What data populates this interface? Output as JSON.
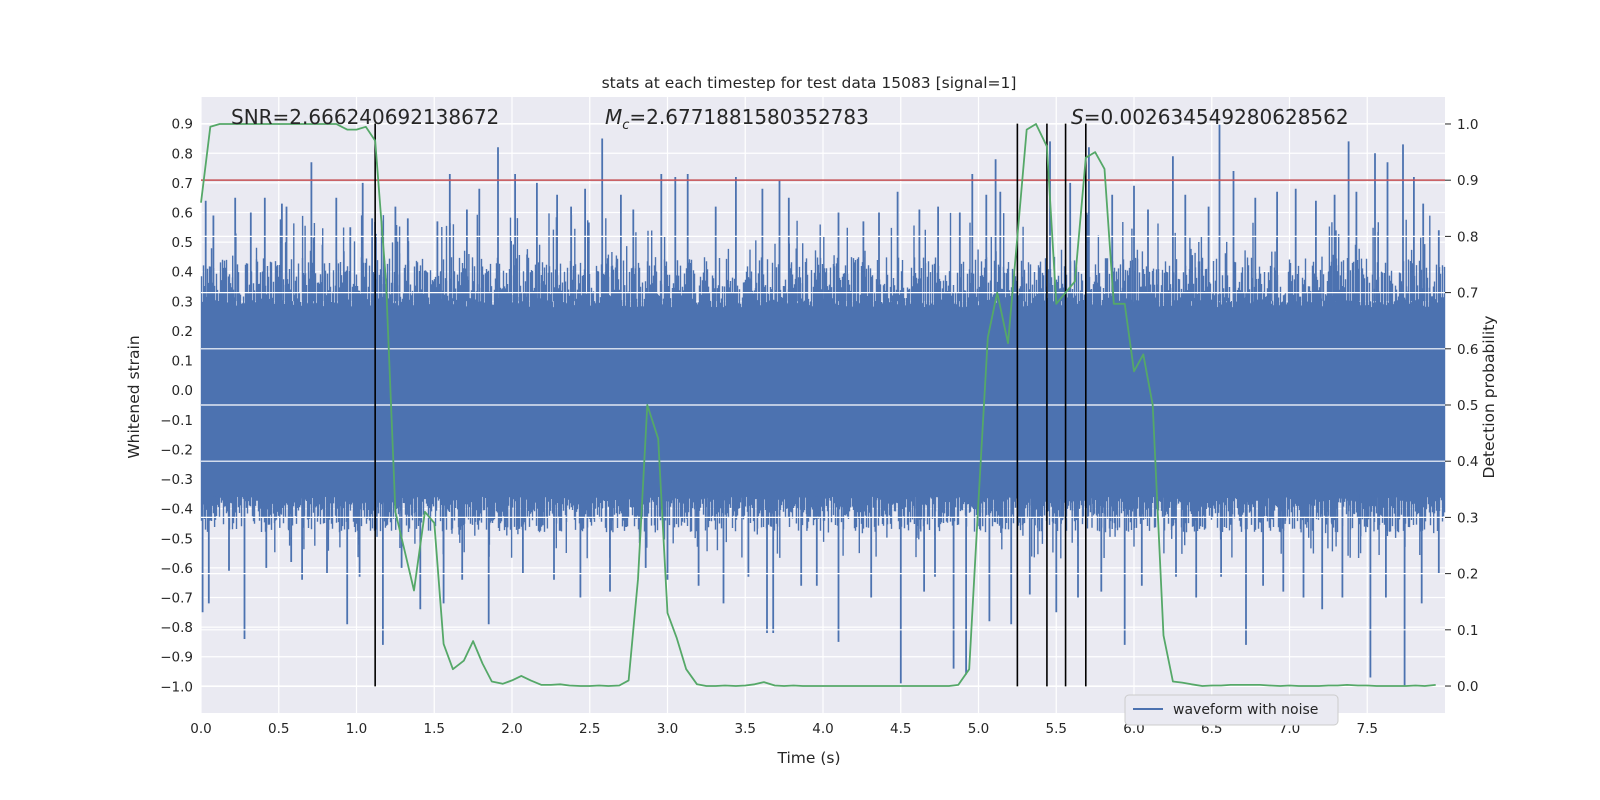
{
  "chart_data": {
    "type": "line",
    "title": "stats at each timestep for test data 15083 [signal=1]",
    "xlabel": "Time (s)",
    "ylabel_left": "Whitened strain",
    "ylabel_right": "Detection probability",
    "xlim": [
      0.0,
      8.0
    ],
    "ylim_left": [
      -1.09,
      0.99
    ],
    "ylim_right": [
      -0.048,
      1.048
    ],
    "x_ticks": [
      "0.0",
      "0.5",
      "1.0",
      "1.5",
      "2.0",
      "2.5",
      "3.0",
      "3.5",
      "4.0",
      "4.5",
      "5.0",
      "5.5",
      "6.0",
      "6.5",
      "7.0",
      "7.5"
    ],
    "y_left_ticks": [
      "0.9",
      "0.8",
      "0.7",
      "0.6",
      "0.5",
      "0.4",
      "0.3",
      "0.2",
      "0.1",
      "0.0",
      "−0.1",
      "−0.2",
      "−0.3",
      "−0.4",
      "−0.5",
      "−0.6",
      "−0.7",
      "−0.8",
      "−0.9",
      "−1.0"
    ],
    "y_right_ticks": [
      "1.0",
      "0.9",
      "0.8",
      "0.7",
      "0.6",
      "0.5",
      "0.4",
      "0.3",
      "0.2",
      "0.1",
      "0.0"
    ],
    "grid": true,
    "annotations": {
      "snr": "SNR=2.666240692138672",
      "mc": "=2.6771881580352783",
      "mc_symbol": "M",
      "mc_sub": "c",
      "s": "=0.0026345492806285​62",
      "s_symbol": "S"
    },
    "threshold": {
      "axis": "right",
      "value": 0.9,
      "color": "#c44e52"
    },
    "vertical_lines": [
      1.12,
      5.25,
      5.44,
      5.56,
      5.69
    ],
    "vertical_line_range": [
      -1.0,
      0.9
    ],
    "series": [
      {
        "name": "waveform with noise",
        "axis": "left",
        "color": "#4c72b0",
        "style": "dense noise, typical amplitude 0.3-0.45, peaks up to ~0.9",
        "spikes_up": [
          [
            0.03,
            0.64
          ],
          [
            0.08,
            0.59
          ],
          [
            0.22,
            0.65
          ],
          [
            0.32,
            0.6
          ],
          [
            0.41,
            0.65
          ],
          [
            0.52,
            0.63
          ],
          [
            0.55,
            0.62
          ],
          [
            0.71,
            0.77
          ],
          [
            0.87,
            0.65
          ],
          [
            0.96,
            0.55
          ],
          [
            1.04,
            0.7
          ],
          [
            1.1,
            0.58
          ],
          [
            1.25,
            0.62
          ],
          [
            1.33,
            0.58
          ],
          [
            1.52,
            0.57
          ],
          [
            1.6,
            0.73
          ],
          [
            1.71,
            0.61
          ],
          [
            1.79,
            0.68
          ],
          [
            1.91,
            0.82
          ],
          [
            2.02,
            0.73
          ],
          [
            2.16,
            0.7
          ],
          [
            2.29,
            0.66
          ],
          [
            2.38,
            0.62
          ],
          [
            2.47,
            0.68
          ],
          [
            2.58,
            0.85
          ],
          [
            2.7,
            0.66
          ],
          [
            2.78,
            0.61
          ],
          [
            2.96,
            0.73
          ],
          [
            3.05,
            0.72
          ],
          [
            3.13,
            0.73
          ],
          [
            3.31,
            0.62
          ],
          [
            3.44,
            0.72
          ],
          [
            3.61,
            0.68
          ],
          [
            3.72,
            0.71
          ],
          [
            3.78,
            0.65
          ],
          [
            4.1,
            0.6
          ],
          [
            4.26,
            0.57
          ],
          [
            4.36,
            0.6
          ],
          [
            4.48,
            0.67
          ],
          [
            4.62,
            0.61
          ],
          [
            4.74,
            0.62
          ],
          [
            4.88,
            0.6
          ],
          [
            4.96,
            0.73
          ],
          [
            5.05,
            0.66
          ],
          [
            5.11,
            0.78
          ],
          [
            5.14,
            0.67
          ],
          [
            5.46,
            0.84
          ],
          [
            5.59,
            0.7
          ],
          [
            5.71,
            0.82
          ],
          [
            5.86,
            0.66
          ],
          [
            6.0,
            0.69
          ],
          [
            6.09,
            0.61
          ],
          [
            6.25,
            0.79
          ],
          [
            6.33,
            0.66
          ],
          [
            6.48,
            0.62
          ],
          [
            6.55,
            0.9
          ],
          [
            6.64,
            0.74
          ],
          [
            6.78,
            0.65
          ],
          [
            6.92,
            0.67
          ],
          [
            7.04,
            0.68
          ],
          [
            7.17,
            0.64
          ],
          [
            7.29,
            0.66
          ],
          [
            7.38,
            0.84
          ],
          [
            7.43,
            0.67
          ],
          [
            7.55,
            0.8
          ],
          [
            7.63,
            0.77
          ],
          [
            7.73,
            0.83
          ],
          [
            7.8,
            0.72
          ],
          [
            7.86,
            0.63
          ],
          [
            7.96,
            0.54
          ]
        ],
        "spikes_down": [
          [
            0.01,
            -0.75
          ],
          [
            0.05,
            -0.72
          ],
          [
            0.28,
            -0.84
          ],
          [
            0.18,
            -0.61
          ],
          [
            0.42,
            -0.6
          ],
          [
            0.58,
            -0.58
          ],
          [
            0.65,
            -0.64
          ],
          [
            0.81,
            -0.62
          ],
          [
            0.94,
            -0.79
          ],
          [
            1.02,
            -0.63
          ],
          [
            1.17,
            -0.86
          ],
          [
            1.29,
            -0.6
          ],
          [
            1.41,
            -0.74
          ],
          [
            1.56,
            -0.72
          ],
          [
            1.68,
            -0.64
          ],
          [
            1.85,
            -0.79
          ],
          [
            2.07,
            -0.62
          ],
          [
            2.27,
            -0.64
          ],
          [
            2.44,
            -0.7
          ],
          [
            2.63,
            -0.68
          ],
          [
            2.86,
            -0.6
          ],
          [
            3.0,
            -0.64
          ],
          [
            3.2,
            -0.66
          ],
          [
            3.36,
            -0.72
          ],
          [
            3.52,
            -0.63
          ],
          [
            3.64,
            -0.82
          ],
          [
            3.68,
            -0.82
          ],
          [
            3.86,
            -0.66
          ],
          [
            3.96,
            -0.66
          ],
          [
            4.1,
            -0.85
          ],
          [
            4.31,
            -0.7
          ],
          [
            4.5,
            -0.99
          ],
          [
            4.65,
            -0.68
          ],
          [
            4.72,
            -0.63
          ],
          [
            4.84,
            -0.94
          ],
          [
            4.92,
            -0.96
          ],
          [
            5.07,
            -0.78
          ],
          [
            5.21,
            -0.79
          ],
          [
            5.33,
            -0.69
          ],
          [
            5.5,
            -0.75
          ],
          [
            5.64,
            -0.7
          ],
          [
            5.79,
            -0.68
          ],
          [
            5.94,
            -0.86
          ],
          [
            6.05,
            -0.66
          ],
          [
            6.27,
            -0.63
          ],
          [
            6.4,
            -0.7
          ],
          [
            6.56,
            -0.63
          ],
          [
            6.72,
            -0.86
          ],
          [
            6.83,
            -0.66
          ],
          [
            6.96,
            -0.68
          ],
          [
            7.09,
            -0.7
          ],
          [
            7.21,
            -0.74
          ],
          [
            7.34,
            -0.7
          ],
          [
            7.52,
            -0.97
          ],
          [
            7.62,
            -0.7
          ],
          [
            7.74,
            -1.0
          ],
          [
            7.85,
            -0.72
          ],
          [
            7.96,
            -0.62
          ]
        ]
      },
      {
        "name": "detection probability",
        "axis": "right",
        "color": "#55a868",
        "x": [
          0.0,
          0.06,
          0.12,
          0.19,
          0.25,
          0.31,
          0.37,
          0.44,
          0.5,
          0.56,
          0.62,
          0.69,
          0.75,
          0.81,
          0.87,
          0.94,
          1.0,
          1.06,
          1.12,
          1.19,
          1.25,
          1.31,
          1.37,
          1.44,
          1.5,
          1.56,
          1.62,
          1.69,
          1.75,
          1.81,
          1.87,
          1.94,
          2.0,
          2.06,
          2.12,
          2.19,
          2.25,
          2.31,
          2.37,
          2.44,
          2.5,
          2.56,
          2.62,
          2.69,
          2.75,
          2.81,
          2.87,
          2.94,
          3.0,
          3.06,
          3.12,
          3.19,
          3.25,
          3.31,
          3.37,
          3.44,
          3.5,
          3.56,
          3.62,
          3.69,
          3.75,
          3.81,
          3.87,
          3.94,
          4.0,
          4.06,
          4.12,
          4.19,
          4.25,
          4.31,
          4.37,
          4.44,
          4.5,
          4.56,
          4.62,
          4.69,
          4.75,
          4.81,
          4.87,
          4.94,
          5.0,
          5.06,
          5.12,
          5.19,
          5.25,
          5.31,
          5.37,
          5.44,
          5.5,
          5.56,
          5.62,
          5.69,
          5.75,
          5.81,
          5.87,
          5.94,
          6.0,
          6.06,
          6.12,
          6.19,
          6.25,
          6.31,
          6.37,
          6.44,
          6.5,
          6.56,
          6.62,
          6.69,
          6.75,
          6.81,
          6.87,
          6.94,
          7.0,
          7.06,
          7.12,
          7.19,
          7.25,
          7.31,
          7.37,
          7.44,
          7.5,
          7.56,
          7.62,
          7.69,
          7.75,
          7.81,
          7.87,
          7.94
        ],
        "values": [
          0.86,
          0.995,
          1.0,
          1.0,
          1.0,
          1.0,
          1.0,
          1.0,
          1.0,
          1.0,
          1.0,
          1.0,
          1.0,
          1.0,
          1.0,
          0.99,
          0.99,
          0.995,
          0.97,
          0.72,
          0.31,
          0.24,
          0.17,
          0.31,
          0.29,
          0.075,
          0.03,
          0.045,
          0.08,
          0.04,
          0.008,
          0.004,
          0.01,
          0.018,
          0.01,
          0.002,
          0.002,
          0.003,
          0.001,
          0.0,
          0.0,
          0.001,
          0.0,
          0.001,
          0.01,
          0.19,
          0.5,
          0.44,
          0.13,
          0.085,
          0.03,
          0.003,
          0.0,
          0.0,
          0.001,
          0.0,
          0.001,
          0.003,
          0.007,
          0.001,
          0.0,
          0.001,
          0.0,
          0.0,
          0.0,
          0.0,
          0.0,
          0.0,
          0.0,
          0.0,
          0.0,
          0.0,
          0.0,
          0.0,
          0.0,
          0.0,
          0.0,
          0.0,
          0.002,
          0.03,
          0.33,
          0.62,
          0.7,
          0.61,
          0.8,
          0.99,
          1.0,
          0.96,
          0.68,
          0.7,
          0.72,
          0.94,
          0.95,
          0.92,
          0.68,
          0.68,
          0.56,
          0.59,
          0.5,
          0.09,
          0.008,
          0.006,
          0.003,
          0.0,
          0.001,
          0.001,
          0.002,
          0.002,
          0.002,
          0.002,
          0.001,
          0.0,
          0.001,
          0.0,
          0.0,
          0.0,
          0.001,
          0.001,
          0.002,
          0.001,
          0.001,
          0.0,
          0.0,
          0.0,
          0.0,
          0.001,
          0.0,
          0.002
        ]
      }
    ],
    "legend": {
      "placement": "bottom-right",
      "entries": [
        "waveform with noise"
      ]
    }
  }
}
